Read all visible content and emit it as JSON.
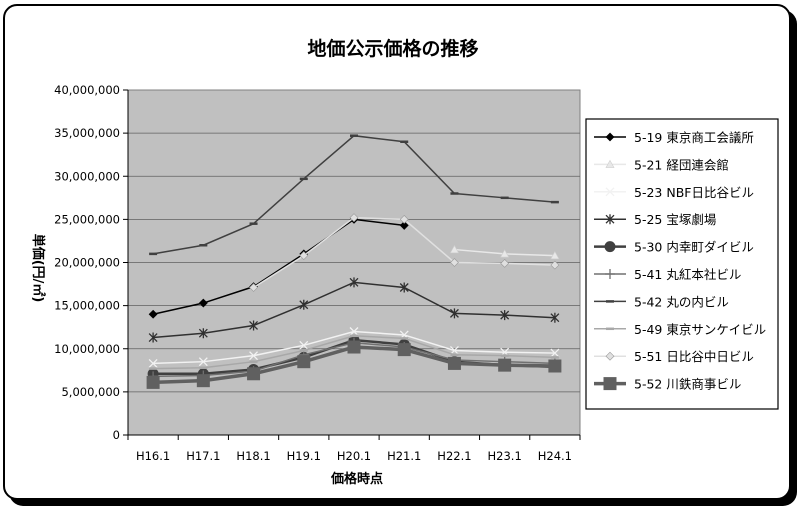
{
  "chart_data": {
    "type": "line",
    "title": "地価公示価格の推移",
    "xlabel": "価格時点",
    "ylabel": "単価(円/㎡)",
    "ylim": [
      0,
      40000000
    ],
    "yticks": [
      0,
      5000000,
      10000000,
      15000000,
      20000000,
      25000000,
      30000000,
      35000000,
      40000000
    ],
    "ytick_labels": [
      "0",
      "5,000,000",
      "10,000,000",
      "15,000,000",
      "20,000,000",
      "25,000,000",
      "30,000,000",
      "35,000,000",
      "40,000,000"
    ],
    "categories": [
      "H16.1",
      "H17.1",
      "H18.1",
      "H19.1",
      "H20.1",
      "H21.1",
      "H22.1",
      "H23.1",
      "H24.1"
    ],
    "grid": "horizontal",
    "plot_background": "#c0c0c0",
    "legend_position": "right",
    "series": [
      {
        "name": "5-19 東京商工会議所",
        "color": "#000000",
        "marker": "diamond",
        "values": [
          14000000,
          15300000,
          17200000,
          21000000,
          25000000,
          24300000,
          null,
          null,
          null
        ]
      },
      {
        "name": "5-21 経団連会館",
        "color": "#e8e8e8",
        "marker": "triangle",
        "values": [
          null,
          null,
          null,
          null,
          null,
          null,
          21500000,
          21000000,
          20800000
        ]
      },
      {
        "name": "5-23 NBF日比谷ビル",
        "color": "#f2f2f2",
        "marker": "x",
        "values": [
          8300000,
          8500000,
          9200000,
          10400000,
          12000000,
          11600000,
          9800000,
          9600000,
          9500000
        ]
      },
      {
        "name": "5-25 宝塚劇場",
        "color": "#303030",
        "marker": "star",
        "values": [
          11300000,
          11800000,
          12700000,
          15100000,
          17700000,
          17100000,
          14100000,
          13900000,
          13600000
        ]
      },
      {
        "name": "5-30 内幸町ダイビル",
        "color": "#404040",
        "marker": "circle",
        "values": [
          7100000,
          7100000,
          7600000,
          9000000,
          11000000,
          10500000,
          8500000,
          8100000,
          7900000
        ]
      },
      {
        "name": "5-41 丸紅本社ビル",
        "color": "#707070",
        "marker": "plus",
        "values": [
          6800000,
          6900000,
          7400000,
          9300000,
          10700000,
          10200000,
          8700000,
          8500000,
          8300000
        ]
      },
      {
        "name": "5-42 丸の内ビル",
        "color": "#404040",
        "marker": "dash",
        "values": [
          21000000,
          22000000,
          24500000,
          29700000,
          34700000,
          34000000,
          28000000,
          27500000,
          27000000
        ]
      },
      {
        "name": "5-49 東京サンケイビル",
        "color": "#a8a8a8",
        "marker": "dash",
        "values": [
          7700000,
          7800000,
          8500000,
          9800000,
          11500000,
          11200000,
          9300000,
          9200000,
          9000000
        ]
      },
      {
        "name": "5-51 日比谷中日ビル",
        "color": "#e0e0e0",
        "marker": "diamond",
        "values": [
          null,
          null,
          17100000,
          20800000,
          25200000,
          25000000,
          20000000,
          19900000,
          19700000
        ]
      },
      {
        "name": "5-52 川鉄商事ビル",
        "color": "#606060",
        "marker": "square",
        "values": [
          6100000,
          6300000,
          7100000,
          8500000,
          10200000,
          9900000,
          8300000,
          8100000,
          8000000
        ]
      }
    ]
  }
}
